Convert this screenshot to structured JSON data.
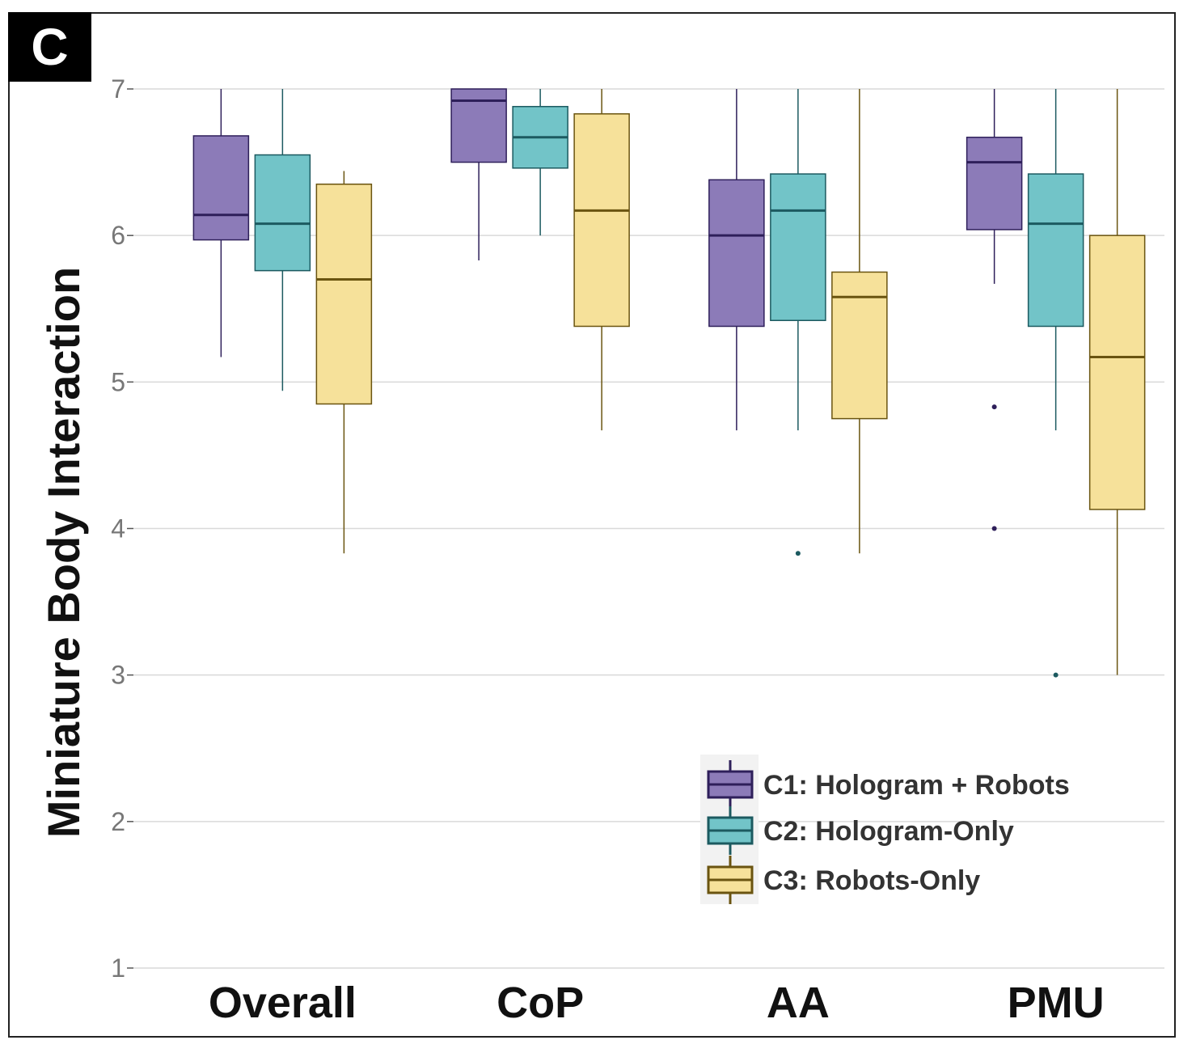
{
  "panel_label": "C",
  "chart_data": {
    "type": "boxplot",
    "title": "",
    "xlabel": "",
    "ylabel": "Miniature Body Interaction",
    "ylim": [
      1,
      7
    ],
    "yticks": [
      1,
      2,
      3,
      4,
      5,
      6,
      7
    ],
    "grid": true,
    "legend_position": "bottom-right",
    "categories": [
      "Overall",
      "CoP",
      "AA",
      "PMU"
    ],
    "series": [
      {
        "name": "C1: Hologram + Robots",
        "fill": "#8c7bb8",
        "stroke": "#2e1f5a",
        "boxes": [
          {
            "min": 5.17,
            "q1": 5.97,
            "median": 6.14,
            "q3": 6.68,
            "max": 7.0,
            "outliers": []
          },
          {
            "min": 5.83,
            "q1": 6.5,
            "median": 6.92,
            "q3": 7.0,
            "max": 7.0,
            "outliers": []
          },
          {
            "min": 4.67,
            "q1": 5.38,
            "median": 6.0,
            "q3": 6.38,
            "max": 7.0,
            "outliers": []
          },
          {
            "min": 5.67,
            "q1": 6.04,
            "median": 6.5,
            "q3": 6.67,
            "max": 7.0,
            "outliers": [
              4.83,
              4.0
            ]
          }
        ]
      },
      {
        "name": "C2: Hologram-Only",
        "fill": "#72c4c8",
        "stroke": "#1c5a60",
        "boxes": [
          {
            "min": 4.94,
            "q1": 5.76,
            "median": 6.08,
            "q3": 6.55,
            "max": 7.0,
            "outliers": []
          },
          {
            "min": 6.0,
            "q1": 6.46,
            "median": 6.67,
            "q3": 6.88,
            "max": 7.0,
            "outliers": []
          },
          {
            "min": 4.67,
            "q1": 5.42,
            "median": 6.17,
            "q3": 6.42,
            "max": 7.0,
            "outliers": [
              3.83
            ]
          },
          {
            "min": 4.67,
            "q1": 5.38,
            "median": 6.08,
            "q3": 6.42,
            "max": 7.0,
            "outliers": [
              3.0
            ]
          }
        ]
      },
      {
        "name": "C3: Robots-Only",
        "fill": "#f6e19a",
        "stroke": "#6a5410",
        "boxes": [
          {
            "min": 3.83,
            "q1": 4.85,
            "median": 5.7,
            "q3": 6.35,
            "max": 6.44,
            "outliers": []
          },
          {
            "min": 4.67,
            "q1": 5.38,
            "median": 6.17,
            "q3": 6.83,
            "max": 7.0,
            "outliers": []
          },
          {
            "min": 3.83,
            "q1": 4.75,
            "median": 5.58,
            "q3": 5.75,
            "max": 7.0,
            "outliers": []
          },
          {
            "min": 3.0,
            "q1": 4.13,
            "median": 5.17,
            "q3": 6.0,
            "max": 7.0,
            "outliers": []
          }
        ]
      }
    ]
  }
}
